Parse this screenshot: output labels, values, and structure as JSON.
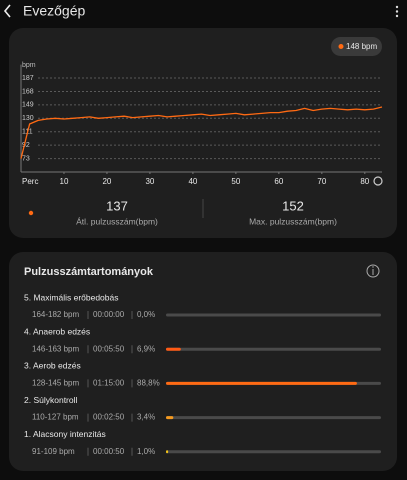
{
  "header": {
    "title": "Evezőgép"
  },
  "heart_rate": {
    "chart_data": {
      "type": "line",
      "ylabel": "bpm",
      "xlabel": "Perc",
      "tooltip": "148 bpm",
      "x": [
        0,
        2,
        4,
        6,
        8,
        10,
        12,
        14,
        16,
        18,
        20,
        22,
        24,
        26,
        28,
        30,
        32,
        34,
        36,
        38,
        40,
        42,
        44,
        46,
        48,
        50,
        52,
        54,
        56,
        58,
        60,
        62,
        64,
        66,
        68,
        70,
        72,
        74,
        76,
        78,
        80,
        82,
        84
      ],
      "series": [
        {
          "color": "#ff6a13",
          "values": [
            73,
            122,
            127,
            129,
            130,
            129,
            130,
            131,
            132,
            130,
            131,
            132,
            133,
            131,
            132,
            133,
            134,
            132,
            133,
            134,
            135,
            136,
            134,
            135,
            136,
            137,
            135,
            136,
            137,
            138,
            138,
            140,
            141,
            144,
            141,
            143,
            144,
            143,
            142,
            143,
            142,
            143,
            146
          ]
        }
      ],
      "xlim": [
        0,
        84
      ],
      "ylim": [
        54,
        206
      ],
      "xticks": [
        10,
        20,
        30,
        40,
        50,
        60,
        70,
        80
      ],
      "yticks": [
        73,
        92,
        111,
        130,
        149,
        168,
        187
      ],
      "grid": true
    },
    "stats": [
      {
        "value": 137,
        "label": "Átl. pulzusszám(bpm)"
      },
      {
        "value": 152,
        "label": "Max. pulzusszám(bpm)"
      }
    ]
  },
  "zones": {
    "title": "Pulzusszámtartományok",
    "xlim": [
      0,
      100
    ],
    "items": [
      {
        "name": "5. Maximális erőbedobás",
        "range": "164-182 bpm",
        "time": "00:00:00",
        "percent": 0.0,
        "percent_label": "0,0%",
        "color": "#ff6a13"
      },
      {
        "name": "4. Anaerob edzés",
        "range": "146-163 bpm",
        "time": "00:05:50",
        "percent": 6.9,
        "percent_label": "6,9%",
        "color": "#ff5a14"
      },
      {
        "name": "3. Aerob edzés",
        "range": "128-145 bpm",
        "time": "01:15:00",
        "percent": 88.8,
        "percent_label": "88,8%",
        "color": "#ff6a13"
      },
      {
        "name": "2. Súlykontroll",
        "range": "110-127 bpm",
        "time": "00:02:50",
        "percent": 3.4,
        "percent_label": "3,4%",
        "color": "#f59a1f"
      },
      {
        "name": "1. Alacsony intenzitás",
        "range": "91-109 bpm",
        "time": "00:00:50",
        "percent": 1.0,
        "percent_label": "1,0%",
        "color": "#f5c518"
      }
    ]
  }
}
